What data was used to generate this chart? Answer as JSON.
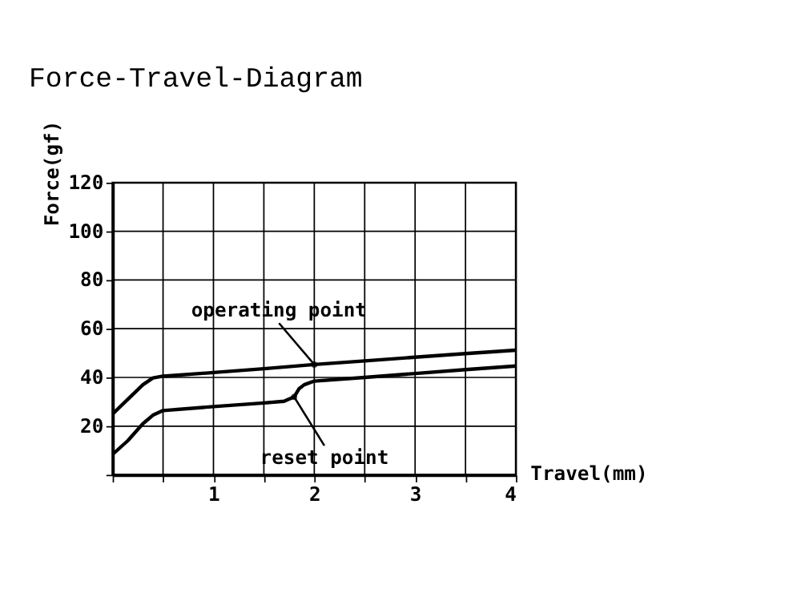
{
  "chart_data": {
    "type": "line",
    "title": "Force-Travel-Diagram",
    "xlabel": "Travel(mm)",
    "ylabel": "Force(gf)",
    "series": [
      {
        "color": "#000000",
        "x": [
          0,
          0.15,
          0.3,
          0.4,
          0.5,
          1,
          1.5,
          2,
          2.5,
          3,
          3.5,
          4
        ],
        "values": [
          25,
          31,
          37,
          39.8,
          40.5,
          42,
          43.6,
          45.3,
          46.8,
          48.3,
          49.8,
          51.2
        ]
      },
      {
        "color": "#000000",
        "x": [
          0,
          0.15,
          0.3,
          0.4,
          0.5,
          1,
          1.5,
          1.7,
          1.8,
          1.85,
          1.9,
          2,
          2.5,
          3,
          3.5,
          4
        ],
        "values": [
          8.4,
          14,
          21,
          24.5,
          26.4,
          28,
          29.5,
          30.2,
          32,
          35.4,
          37,
          38.5,
          40,
          41.6,
          43.2,
          44.7
        ]
      }
    ],
    "annotations": [
      {
        "text": "operating point",
        "x": 2,
        "y": 45.3
      },
      {
        "text": "reset point",
        "x": 1.8,
        "y": 32
      }
    ],
    "xlim": [
      0,
      4
    ],
    "ylim": [
      0,
      120
    ],
    "xticks": [
      {
        "value": 0,
        "label": null
      },
      {
        "value": 0.5,
        "label": null
      },
      1,
      {
        "value": 1.5,
        "label": null
      },
      2,
      {
        "value": 2.5,
        "label": null
      },
      3,
      {
        "value": 3.5,
        "label": null
      },
      4
    ],
    "yticks": [
      {
        "value": 0,
        "label": null
      },
      20,
      40,
      60,
      80,
      100,
      120
    ],
    "grid": true,
    "line_style": "solid",
    "marker": "none",
    "legend": false
  }
}
